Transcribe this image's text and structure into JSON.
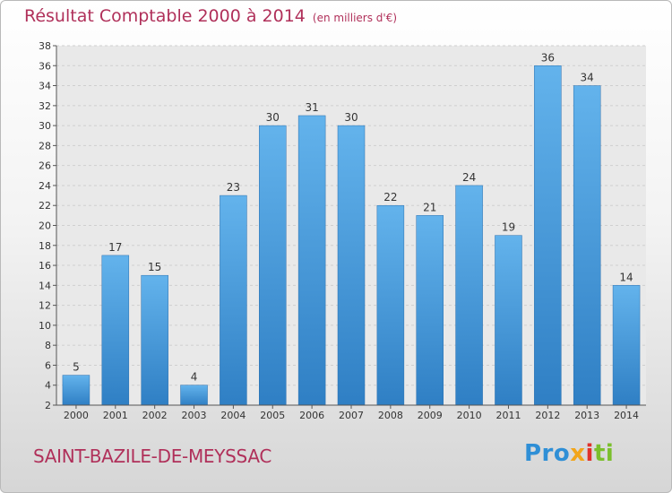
{
  "title": "Résultat Comptable 2000 à 2014",
  "unit_note": "(en milliers d'€)",
  "town": "SAINT-BAZILE-DE-MEYSSAC",
  "logo": {
    "parts": [
      "Pro",
      "x",
      "i",
      "ti"
    ],
    "colors": [
      "#2f8fd6",
      "#f2a51a",
      "#e0312b",
      "#7bbf2c"
    ]
  },
  "colors": {
    "bar_light": "#63b3ec",
    "bar_dark": "#2f7fc4",
    "title": "#b0305a"
  },
  "chart_data": {
    "type": "bar",
    "title": "Résultat Comptable 2000 à 2014",
    "xlabel": "",
    "ylabel": "",
    "categories": [
      "2000",
      "2001",
      "2002",
      "2003",
      "2004",
      "2005",
      "2006",
      "2007",
      "2008",
      "2009",
      "2010",
      "2011",
      "2012",
      "2013",
      "2014"
    ],
    "values": [
      5,
      17,
      15,
      4,
      23,
      30,
      31,
      30,
      22,
      21,
      24,
      19,
      36,
      34,
      14
    ],
    "data_labels": [
      "5",
      "17",
      "15",
      "4",
      "23",
      "30",
      "31",
      "30",
      "22",
      "21",
      "24",
      "19",
      "36",
      "34",
      "14"
    ],
    "ylim": [
      2,
      38
    ],
    "yticks": [
      2,
      4,
      6,
      8,
      10,
      12,
      14,
      16,
      18,
      20,
      22,
      24,
      26,
      28,
      30,
      32,
      34,
      36,
      38
    ],
    "grid": true,
    "legend": "none"
  }
}
